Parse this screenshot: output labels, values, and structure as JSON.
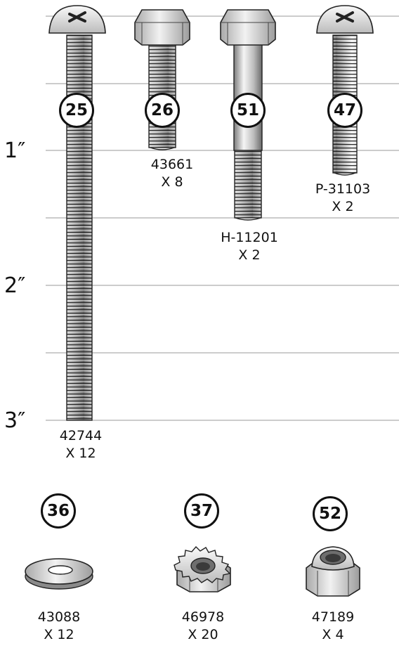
{
  "ruler": {
    "labels": [
      "1″",
      "2″",
      "3″"
    ]
  },
  "colors": {
    "steel_light": "#f4f4f4",
    "steel_mid": "#c8c8c8",
    "steel_dark": "#6e6e6e",
    "outline": "#222222",
    "grid_line": "#9a9a9a"
  },
  "parts": [
    {
      "key": "25",
      "icon": "round-head-screw-long-icon",
      "badge": "25",
      "part_number": "42744",
      "quantity": "X 12"
    },
    {
      "key": "26",
      "icon": "hex-bolt-short-icon",
      "badge": "26",
      "part_number": "43661",
      "quantity": "X 8"
    },
    {
      "key": "51",
      "icon": "hex-bolt-shoulder-icon",
      "badge": "51",
      "part_number": "H-11201",
      "quantity": "X 2"
    },
    {
      "key": "47",
      "icon": "round-head-screw-icon",
      "badge": "47",
      "part_number": "P-31103",
      "quantity": "X 2"
    },
    {
      "key": "36",
      "icon": "flat-washer-icon",
      "badge": "36",
      "part_number": "43088",
      "quantity": "X 12"
    },
    {
      "key": "37",
      "icon": "kep-nut-icon",
      "badge": "37",
      "part_number": "46978",
      "quantity": "X 20"
    },
    {
      "key": "52",
      "icon": "nylon-lock-nut-icon",
      "badge": "52",
      "part_number": "47189",
      "quantity": "X 4"
    }
  ]
}
